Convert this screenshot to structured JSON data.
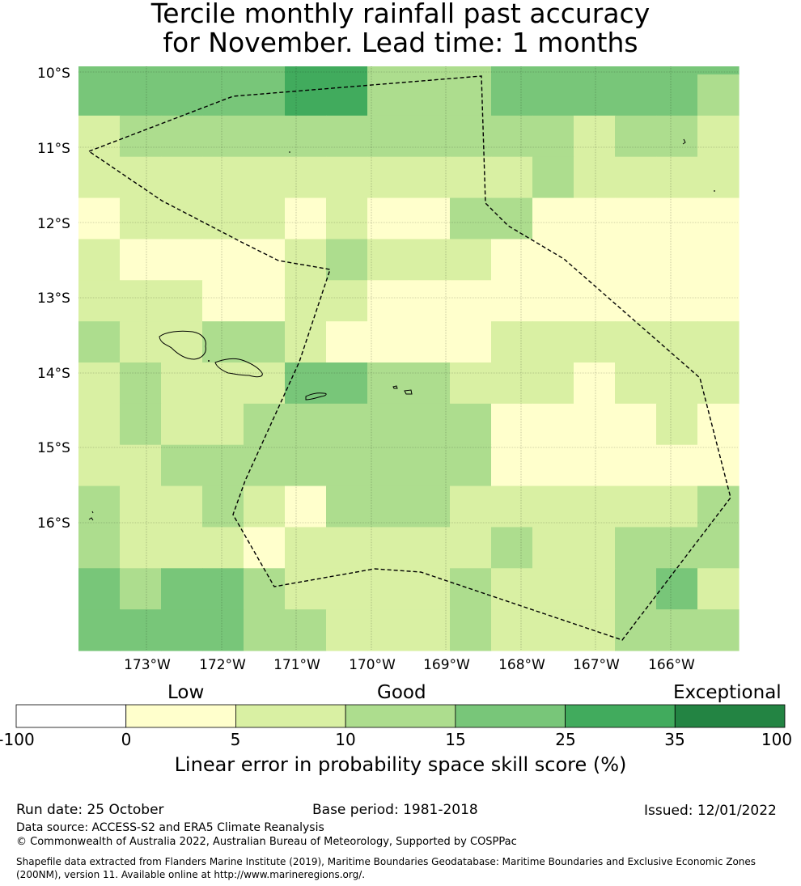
{
  "title": {
    "line1": "Tercile monthly rainfall past accuracy",
    "line2": "for November. Lead time: 1 months"
  },
  "map": {
    "lat_labels": [
      "10°S",
      "11°S",
      "12°S",
      "13°S",
      "14°S",
      "15°S",
      "16°S"
    ],
    "lon_labels": [
      "173°W",
      "172°W",
      "171°W",
      "170°W",
      "169°W",
      "168°W",
      "167°W",
      "166°W"
    ],
    "grid_columns": 16,
    "grid_rows": 14,
    "cell_classes": [
      "3333344222333332",
      "1222222222221221",
      "1111111111121111",
      "0111101002200000",
      "1000012111000000",
      "1110011000000000",
      "2112210000111111",
      "1211133221110111",
      "1211222222000010",
      "1122222222000000",
      "2112102221111112",
      "2111011111211222",
      "3233211112111231",
      "3333221112111222"
    ],
    "top_strip_classes": "3333344222333333",
    "boundary_style": "dashed"
  },
  "legend": {
    "category_words": [
      "Low",
      "Good",
      "Exceptional"
    ],
    "tick_labels": [
      "-100",
      "0",
      "5",
      "10",
      "15",
      "25",
      "35",
      "100"
    ],
    "colors": [
      "#ffffff",
      "#ffffcc",
      "#d9f0a3",
      "#addd8e",
      "#78c679",
      "#41ab5d",
      "#238443"
    ],
    "axis_label": "Linear error in probability space skill score (%)"
  },
  "footer": {
    "run_date": "Run date: 25 October",
    "base_period": "Base period: 1981-2018",
    "issued": "Issued: 12/01/2022",
    "data_source": "Data source: ACCESS-S2 and ERA5 Climate Reanalysis",
    "copyright": "© Commonwealth of Australia 2022, Australian Bureau of Meteorology, Supported by COSPPac",
    "shapefile_line1": "Shapefile data extracted from Flanders Marine Institute (2019), Maritime Boundaries Geodatabase: Maritime Boundaries and Exclusive Economic Zones",
    "shapefile_line2": "(200NM), version 11. Available online at http://www.marineregions.org/."
  }
}
